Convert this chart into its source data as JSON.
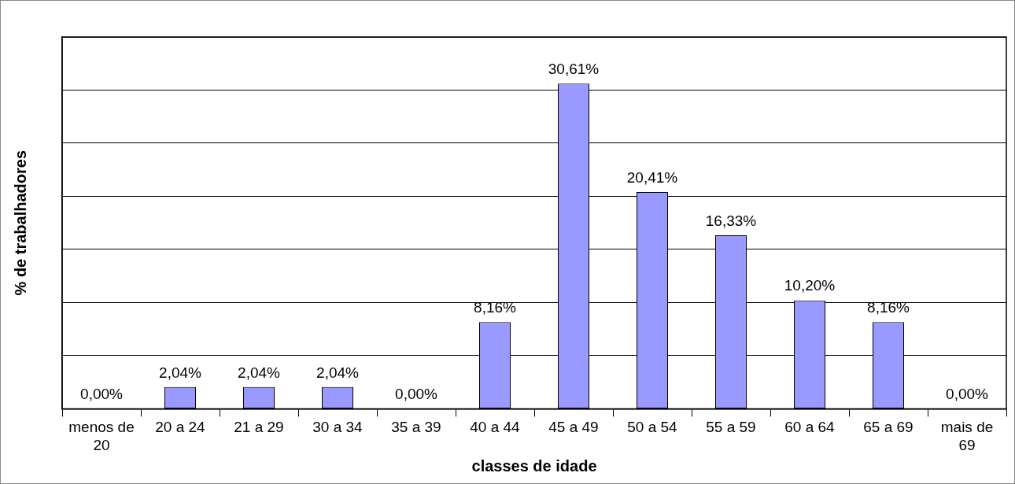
{
  "chart_data": {
    "type": "bar",
    "xlabel": "classes de idade",
    "ylabel": "% de trabalhadores",
    "categories": [
      "menos de 20",
      "20 a 24",
      "21 a 29",
      "30 a 34",
      "35 a 39",
      "40 a 44",
      "45 a 49",
      "50 a 54",
      "55 a 59",
      "60 a 64",
      "65 a 69",
      "mais de 69"
    ],
    "values": [
      0,
      2.04,
      2.04,
      2.04,
      0,
      8.16,
      30.61,
      20.41,
      16.33,
      10.2,
      8.16,
      0
    ],
    "value_labels": [
      "0,00%",
      "2,04%",
      "2,04%",
      "2,04%",
      "0,00%",
      "8,16%",
      "30,61%",
      "20,41%",
      "16,33%",
      "10,20%",
      "8,16%",
      "0,00%"
    ],
    "color": "#9999ff",
    "grid": "y",
    "tick_labels": "x",
    "legend": false
  }
}
